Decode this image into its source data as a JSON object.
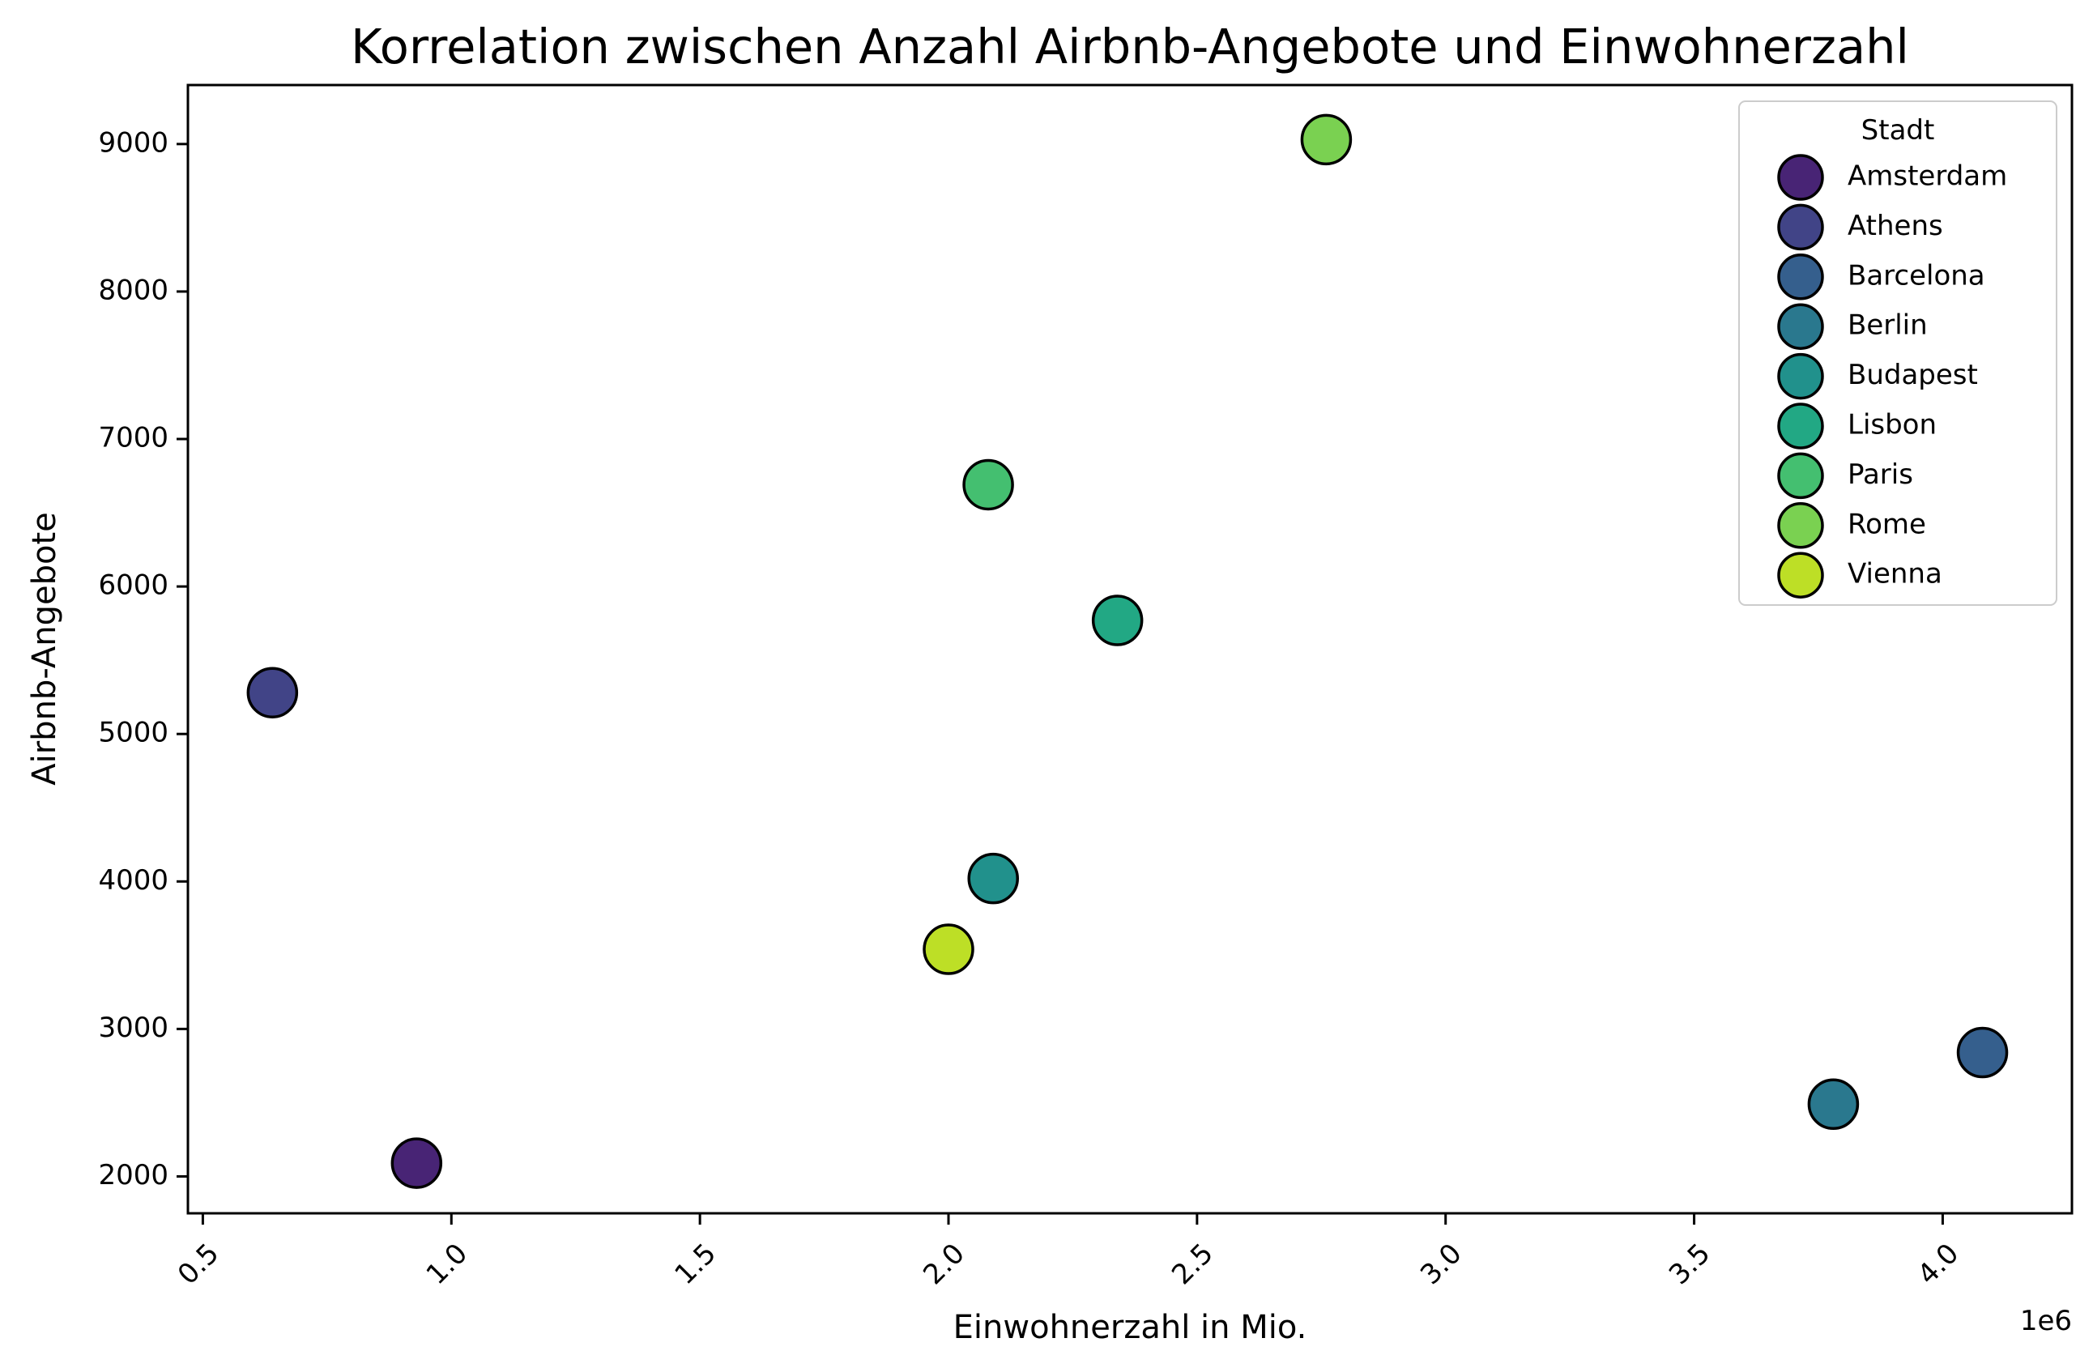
{
  "chart_data": {
    "type": "scatter",
    "title": "Korrelation zwischen Anzahl Airbnb-Angebote und Einwohnerzahl",
    "xlabel": "Einwohnerzahl in Mio.",
    "ylabel": "Airbnb-Angebote",
    "x_offset_label": "1e6",
    "xlim": [
      0.47,
      4.26
    ],
    "ylim": [
      1750,
      9400
    ],
    "x_ticks": [
      0.5,
      1.0,
      1.5,
      2.0,
      2.5,
      3.0,
      3.5,
      4.0
    ],
    "x_tick_labels": [
      "0.5",
      "1.0",
      "1.5",
      "2.0",
      "2.5",
      "3.0",
      "3.5",
      "4.0"
    ],
    "y_ticks": [
      2000,
      3000,
      4000,
      5000,
      6000,
      7000,
      8000,
      9000
    ],
    "y_tick_labels": [
      "2000",
      "3000",
      "4000",
      "5000",
      "6000",
      "7000",
      "8000",
      "9000"
    ],
    "grid": false,
    "legend": {
      "title": "Stadt",
      "position": "top-right"
    },
    "series": [
      {
        "name": "Amsterdam",
        "color": "#482475",
        "x": 0.93,
        "y": 2090
      },
      {
        "name": "Athens",
        "color": "#414487",
        "x": 0.64,
        "y": 5280
      },
      {
        "name": "Barcelona",
        "color": "#355f8d",
        "x": 4.08,
        "y": 2840
      },
      {
        "name": "Berlin",
        "color": "#2a788e",
        "x": 3.78,
        "y": 2490
      },
      {
        "name": "Budapest",
        "color": "#21918c",
        "x": 2.09,
        "y": 4020
      },
      {
        "name": "Lisbon",
        "color": "#22a884",
        "x": 2.34,
        "y": 5770
      },
      {
        "name": "Paris",
        "color": "#44bf70",
        "x": 2.08,
        "y": 6690
      },
      {
        "name": "Rome",
        "color": "#7ad151",
        "x": 2.76,
        "y": 9030
      },
      {
        "name": "Vienna",
        "color": "#bddf26",
        "x": 2.0,
        "y": 3540
      }
    ]
  }
}
